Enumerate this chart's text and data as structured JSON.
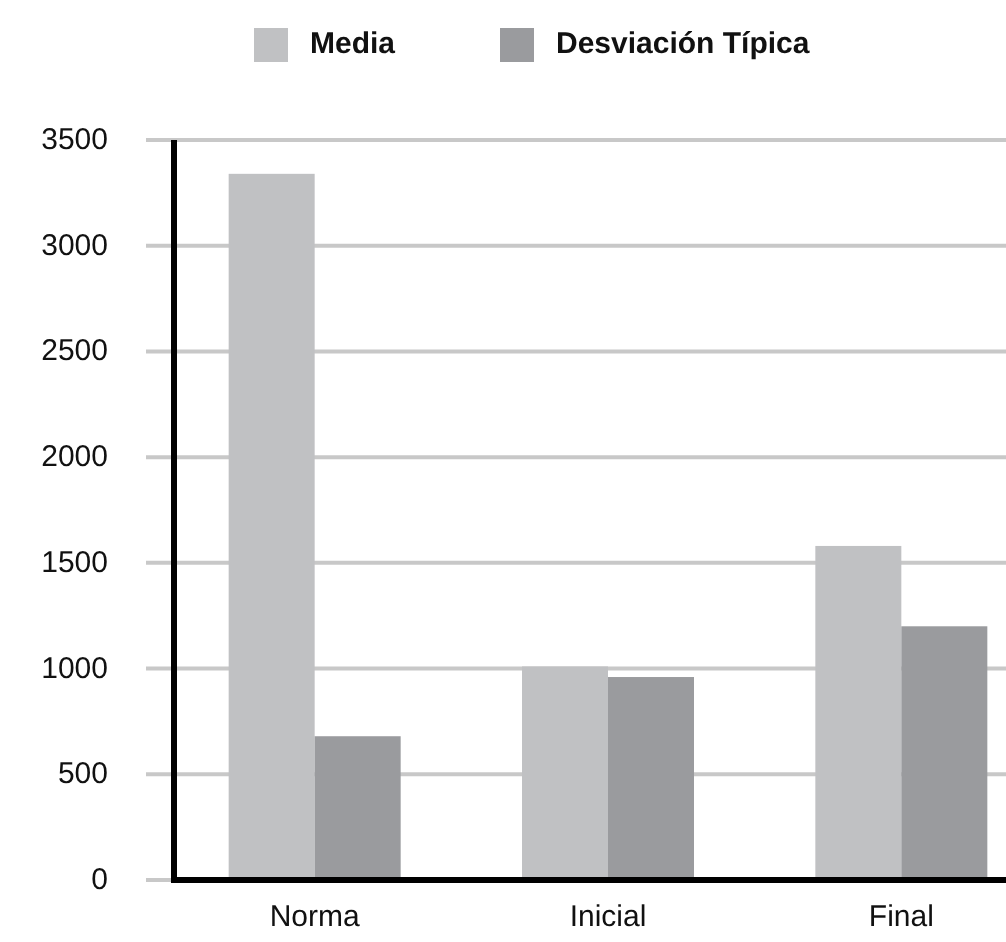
{
  "chart_data": {
    "type": "bar",
    "categories": [
      "Norma",
      "Inicial",
      "Final"
    ],
    "series": [
      {
        "name": "Media",
        "color": "#c0c1c3",
        "values": [
          3340,
          1010,
          1580
        ]
      },
      {
        "name": "Desviación Típica",
        "color": "#9a9b9e",
        "values": [
          680,
          960,
          1200
        ]
      }
    ],
    "ylim": [
      0,
      3500
    ],
    "yticks": [
      0,
      500,
      1000,
      1500,
      2000,
      2500,
      3000,
      3500
    ],
    "grid": "y",
    "legend": "top"
  }
}
